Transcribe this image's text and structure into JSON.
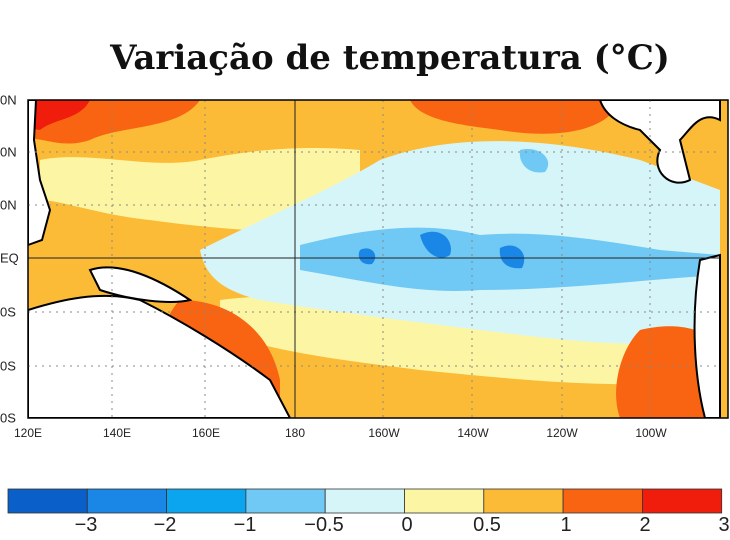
{
  "title": "Variação de temperatura (°C)",
  "map": {
    "lat_labels": [
      "0N",
      "0N",
      "0N",
      "EQ",
      "0S",
      "0S",
      "0S"
    ],
    "lon_labels": [
      "120E",
      "140E",
      "160E",
      "180",
      "160W",
      "140W",
      "120W",
      "100W"
    ]
  },
  "colorbar": {
    "colors": [
      "#0a5fc8",
      "#1a86e6",
      "#0aa5ee",
      "#70c9f4",
      "#d6f5f9",
      "#fcf6a4",
      "#fbbb36",
      "#f86412",
      "#f01c0c"
    ],
    "labels": [
      "−3",
      "−2",
      "−1",
      "−0.5",
      "0",
      "0.5",
      "1",
      "2",
      "3"
    ]
  }
}
